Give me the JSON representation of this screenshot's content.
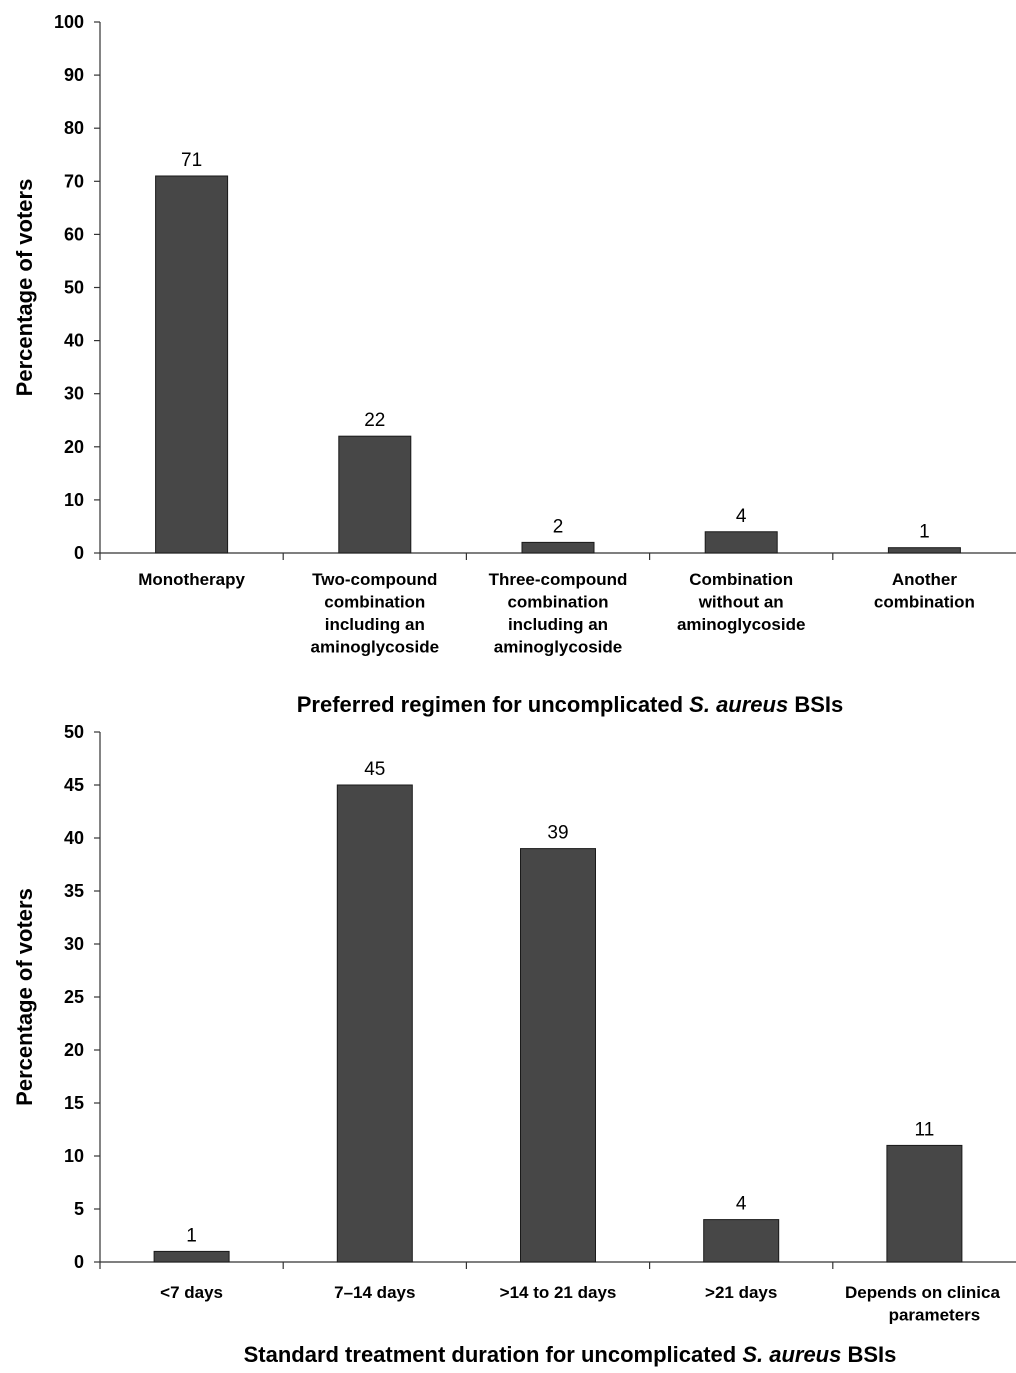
{
  "chart_data": [
    {
      "type": "bar",
      "title": "",
      "xlabel": [
        "Preferred regimen for uncomplicated ",
        "S. aureus",
        " BSIs"
      ],
      "ylabel": "Percentage of voters",
      "ylim": [
        0,
        100
      ],
      "yticks": [
        0,
        10,
        20,
        30,
        40,
        50,
        60,
        70,
        80,
        90,
        100
      ],
      "categories": [
        [
          "Monotherapy"
        ],
        [
          "Two-compound",
          "combination",
          "including an",
          "aminoglycoside"
        ],
        [
          "Three-compound",
          "combination",
          "including an",
          "aminoglycoside"
        ],
        [
          "Combination",
          "without an",
          "aminoglycoside"
        ],
        [
          "Another",
          "combination"
        ]
      ],
      "values": [
        71,
        22,
        2,
        4,
        1
      ],
      "bar_color": "#474747",
      "grid": false
    },
    {
      "type": "bar",
      "title": "",
      "xlabel": [
        "Standard treatment duration for uncomplicated ",
        "S. aureus",
        " BSIs"
      ],
      "ylabel": "Percentage of voters",
      "ylim": [
        0,
        50
      ],
      "yticks": [
        0,
        5,
        10,
        15,
        20,
        25,
        30,
        35,
        40,
        45,
        50
      ],
      "categories": [
        [
          "<7 days"
        ],
        [
          "7–14 days"
        ],
        [
          ">14 to 21 days"
        ],
        [
          ">21 days"
        ],
        [
          "Depends on clinica",
          "parameters"
        ]
      ],
      "values": [
        1,
        45,
        39,
        4,
        11
      ],
      "bar_color": "#474747",
      "grid": false
    }
  ]
}
